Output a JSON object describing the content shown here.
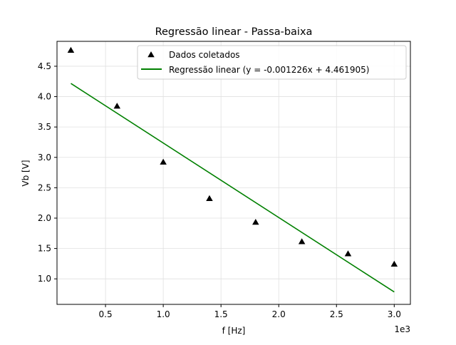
{
  "chart_data": {
    "type": "scatter",
    "title": "Regressão linear - Passa-baixa",
    "xlabel": "f [Hz]",
    "ylabel": "Vb [V]",
    "x_offset_label": "1e3",
    "xlim": [
      0.08,
      3.14
    ],
    "ylim": [
      0.58,
      4.91
    ],
    "x_ticks": [
      {
        "value": 0.5,
        "label": "0.5"
      },
      {
        "value": 1.0,
        "label": "1.0"
      },
      {
        "value": 1.5,
        "label": "1.5"
      },
      {
        "value": 2.0,
        "label": "2.0"
      },
      {
        "value": 2.5,
        "label": "2.5"
      },
      {
        "value": 3.0,
        "label": "3.0"
      }
    ],
    "y_ticks": [
      {
        "value": 1.0,
        "label": "1.0"
      },
      {
        "value": 1.5,
        "label": "1.5"
      },
      {
        "value": 2.0,
        "label": "2.0"
      },
      {
        "value": 2.5,
        "label": "2.5"
      },
      {
        "value": 3.0,
        "label": "3.0"
      },
      {
        "value": 3.5,
        "label": "3.5"
      },
      {
        "value": 4.0,
        "label": "4.0"
      },
      {
        "value": 4.5,
        "label": "4.5"
      }
    ],
    "grid": true,
    "legend_position": "top-right",
    "series": [
      {
        "name": "Dados coletados",
        "kind": "scatter",
        "marker": "triangle-up",
        "color": "#000000",
        "points": [
          {
            "x": 0.2,
            "y": 4.76
          },
          {
            "x": 0.6,
            "y": 3.84
          },
          {
            "x": 1.0,
            "y": 2.92
          },
          {
            "x": 1.4,
            "y": 2.32
          },
          {
            "x": 1.8,
            "y": 1.93
          },
          {
            "x": 2.2,
            "y": 1.61
          },
          {
            "x": 2.6,
            "y": 1.41
          },
          {
            "x": 3.0,
            "y": 1.24
          }
        ]
      },
      {
        "name": "Regressão linear (y = -0.001226x + 4.461905)",
        "kind": "line",
        "color": "#008000",
        "points": [
          {
            "x": 0.2,
            "y": 4.217
          },
          {
            "x": 3.0,
            "y": 0.784
          }
        ]
      }
    ]
  }
}
